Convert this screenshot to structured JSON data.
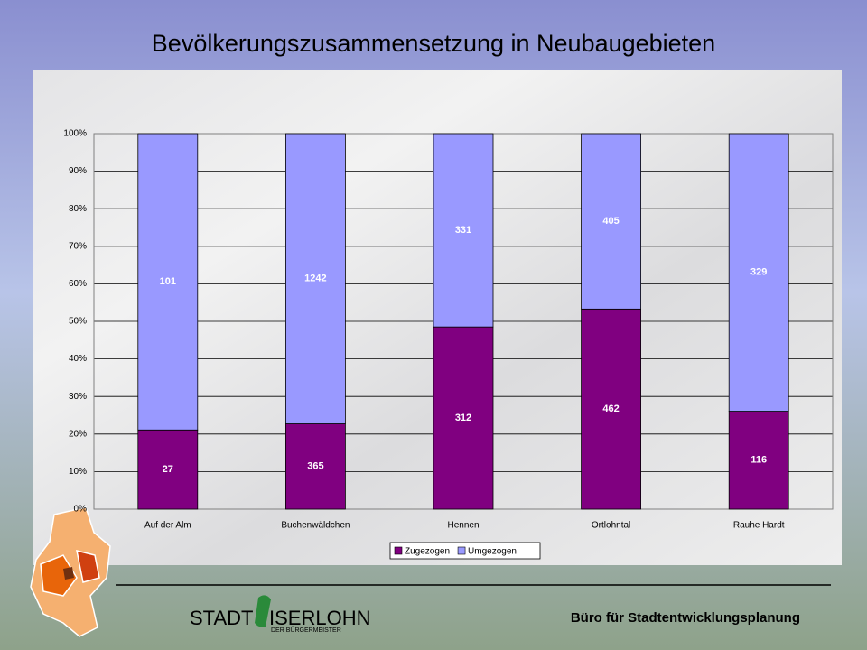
{
  "chart_data": {
    "type": "bar",
    "stacking": "percent",
    "title": "Bevölkerungszusammensetzung in Neubaugebieten",
    "categories": [
      "Auf der Alm",
      "Buchenwäldchen",
      "Hennen",
      "Ortlohntal",
      "Rauhe Hardt"
    ],
    "series": [
      {
        "name": "Zugezogen",
        "color": "#800080",
        "values": [
          27,
          365,
          312,
          462,
          116
        ]
      },
      {
        "name": "Umgezogen",
        "color": "#9999ff",
        "values": [
          101,
          1242,
          331,
          405,
          329
        ]
      }
    ],
    "ylim": [
      0,
      100
    ],
    "yticks": [
      {
        "value": 0,
        "label": "0%"
      },
      {
        "value": 10,
        "label": "10%"
      },
      {
        "value": 20,
        "label": "20%"
      },
      {
        "value": 30,
        "label": "30%"
      },
      {
        "value": 40,
        "label": "40%"
      },
      {
        "value": 50,
        "label": "50%"
      },
      {
        "value": 60,
        "label": "60%"
      },
      {
        "value": 70,
        "label": "70%"
      },
      {
        "value": 80,
        "label": "80%"
      },
      {
        "value": 90,
        "label": "90%"
      },
      {
        "value": 100,
        "label": "100%"
      }
    ],
    "grid": true,
    "legend": "bottom"
  },
  "footer": {
    "office": "Büro für Stadtentwicklungsplanung",
    "logo_left": "STADT",
    "logo_right": "ISERLOHN",
    "logo_sub": "DER BÜRGERMEISTER"
  }
}
